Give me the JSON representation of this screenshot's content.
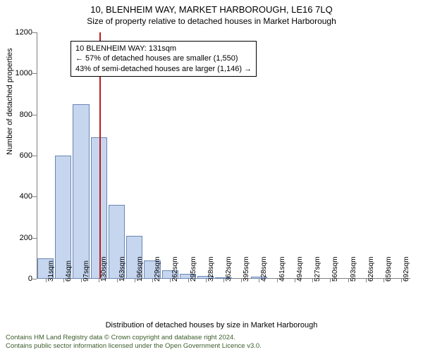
{
  "header": {
    "title": "10, BLENHEIM WAY, MARKET HARBOROUGH, LE16 7LQ",
    "subtitle": "Size of property relative to detached houses in Market Harborough"
  },
  "chart": {
    "type": "histogram",
    "ylabel": "Number of detached properties",
    "xlabel": "Distribution of detached houses by size in Market Harborough",
    "ylim": [
      0,
      1200
    ],
    "ytick_step": 200,
    "bar_color": "#c6d6ef",
    "bar_border_color": "#6b86b3",
    "background_color": "#ffffff",
    "axis_color": "#808080",
    "label_fontsize": 11,
    "tick_fontsize": 11,
    "xtick_fontsize": 10,
    "marker_line_color": "#b81e1e",
    "marker_size_sqm": 131,
    "x_categories": [
      "31sqm",
      "64sqm",
      "97sqm",
      "130sqm",
      "163sqm",
      "196sqm",
      "229sqm",
      "262sqm",
      "295sqm",
      "328sqm",
      "362sqm",
      "395sqm",
      "428sqm",
      "461sqm",
      "494sqm",
      "527sqm",
      "560sqm",
      "593sqm",
      "626sqm",
      "659sqm",
      "692sqm"
    ],
    "values": [
      100,
      600,
      850,
      690,
      360,
      210,
      90,
      40,
      25,
      15,
      2,
      0,
      10,
      0,
      0,
      0,
      0,
      0,
      0,
      0,
      0
    ]
  },
  "callout": {
    "line1": "10 BLENHEIM WAY: 131sqm",
    "line2": "← 57% of detached houses are smaller (1,550)",
    "line3": "43% of semi-detached houses are larger (1,146) →",
    "border_color": "#000000",
    "background_color": "#ffffff",
    "fontsize": 11
  },
  "footer": {
    "line1": "Contains HM Land Registry data © Crown copyright and database right 2024.",
    "line2": "Contains public sector information licensed under the Open Government Licence v3.0.",
    "text_color": "#3a5c2a",
    "fontsize": 9.5
  }
}
